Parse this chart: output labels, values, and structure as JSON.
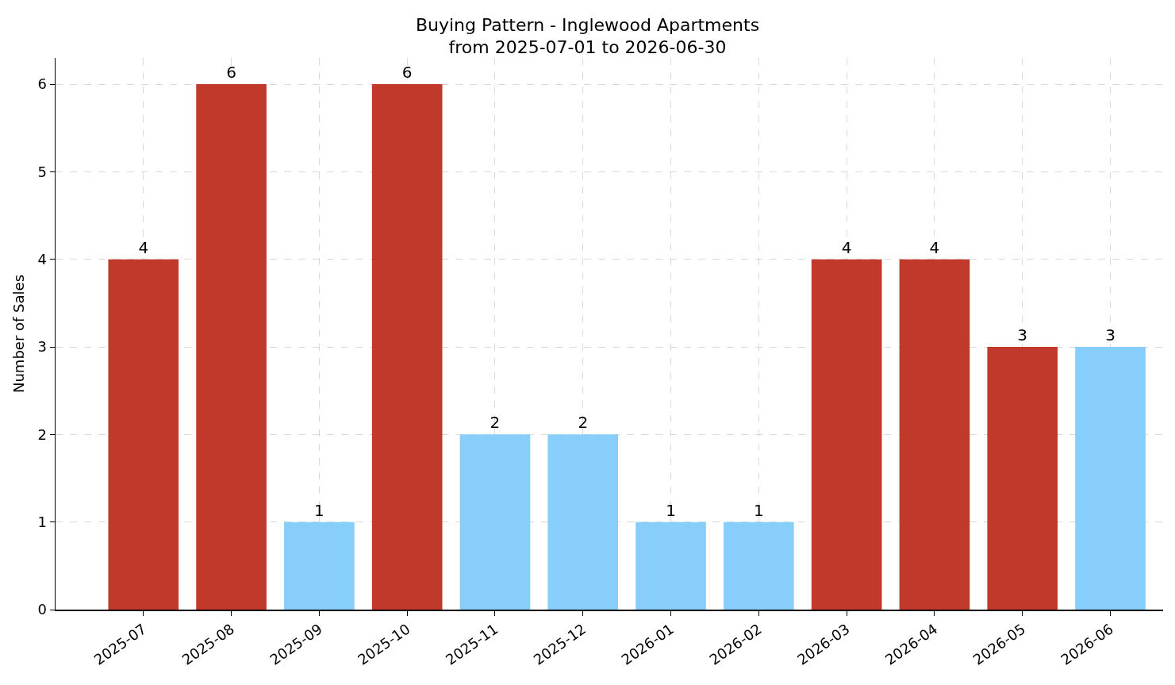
{
  "chart_data": {
    "type": "bar",
    "title": "Buying Pattern - Inglewood Apartments\nfrom 2025-07-01 to 2026-06-30",
    "ylabel": "Number of Sales",
    "categories": [
      "2025-07",
      "2025-08",
      "2025-09",
      "2025-10",
      "2025-11",
      "2025-12",
      "2026-01",
      "2026-02",
      "2026-03",
      "2026-04",
      "2026-05",
      "2026-06"
    ],
    "values": [
      4,
      6,
      1,
      6,
      2,
      2,
      1,
      1,
      4,
      4,
      3,
      3
    ],
    "colors": [
      "#c0392b",
      "#c0392b",
      "#87cefa",
      "#c0392b",
      "#87cefa",
      "#87cefa",
      "#87cefa",
      "#87cefa",
      "#c0392b",
      "#c0392b",
      "#c0392b",
      "#87cefa"
    ],
    "ylim": [
      0,
      6.3
    ],
    "yticks": [
      0,
      1,
      2,
      3,
      4,
      5,
      6
    ],
    "grid": true,
    "data_labels": true
  }
}
